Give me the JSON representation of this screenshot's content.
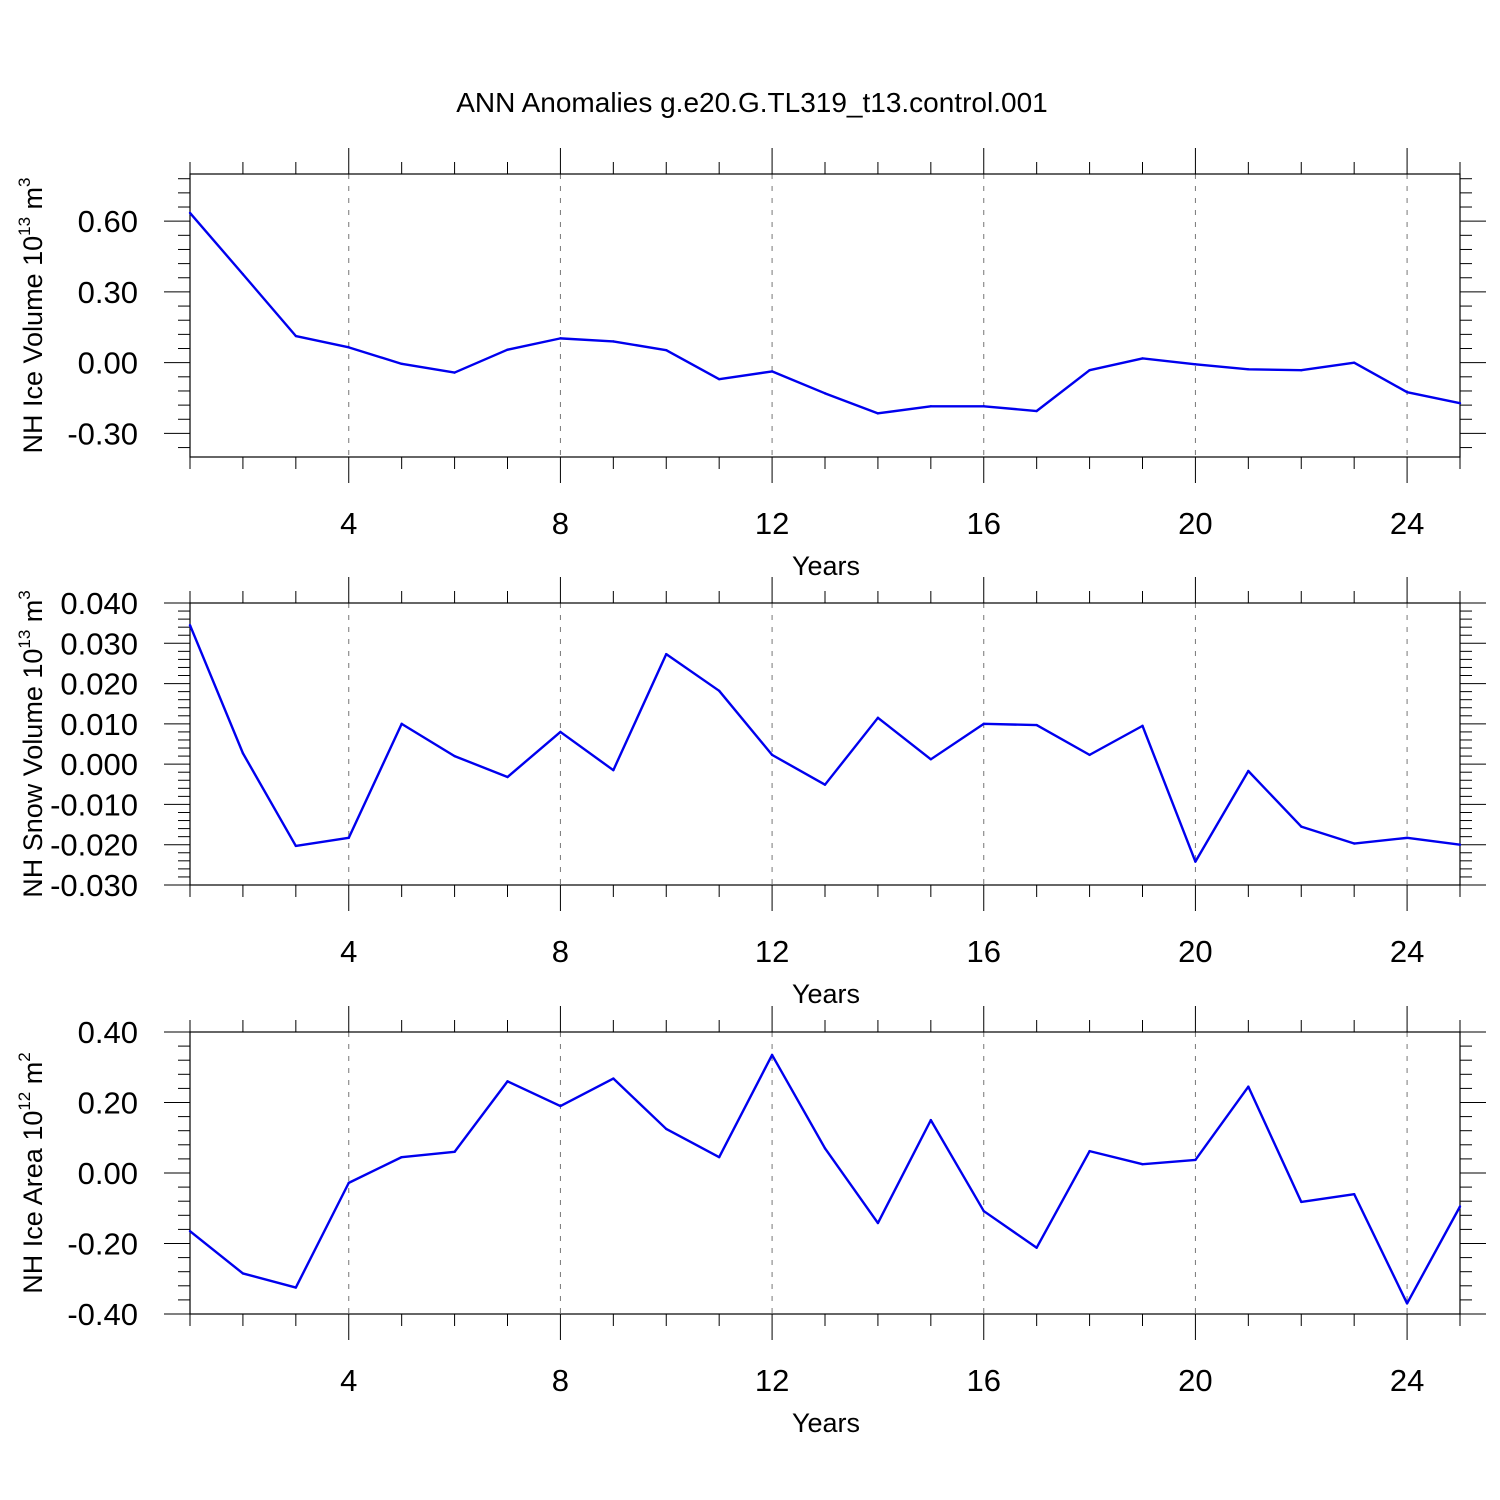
{
  "title": "ANN Anomalies g.e20.G.TL319_t13.control.001",
  "colors": {
    "series": "#0000ee",
    "axis": "#000000",
    "grid": "#777777"
  },
  "chart_data": [
    {
      "type": "line",
      "xlabel": "Years",
      "ylabel": {
        "text": "NH Ice Volume 10",
        "sup1": "13",
        "mid": " m",
        "sup2": "3"
      },
      "xlim": [
        1,
        25
      ],
      "ylim": [
        -0.4,
        0.8
      ],
      "xticks": [
        4,
        8,
        12,
        16,
        20,
        24
      ],
      "xtick_labels": [
        "4",
        "8",
        "12",
        "16",
        "20",
        "24"
      ],
      "yticks": [
        0.6,
        0.3,
        0.0,
        -0.3
      ],
      "ytick_labels": [
        "0.60",
        "0.30",
        "0.00",
        "-0.30"
      ],
      "grid": "vertical-dashed",
      "x": [
        1,
        2,
        3,
        4,
        5,
        6,
        7,
        8,
        9,
        10,
        11,
        12,
        13,
        14,
        15,
        16,
        17,
        18,
        19,
        20,
        21,
        22,
        23,
        24,
        25
      ],
      "values": [
        0.635,
        0.375,
        0.113,
        0.065,
        -0.005,
        -0.042,
        0.055,
        0.103,
        0.09,
        0.053,
        -0.07,
        -0.037,
        -0.13,
        -0.215,
        -0.185,
        -0.185,
        -0.205,
        -0.032,
        0.018,
        -0.007,
        -0.028,
        -0.032,
        0.0,
        -0.125,
        -0.172
      ]
    },
    {
      "type": "line",
      "xlabel": "Years",
      "ylabel": {
        "text": "NH Snow Volume 10",
        "sup1": "13",
        "mid": " m",
        "sup2": "3"
      },
      "xlim": [
        1,
        25
      ],
      "ylim": [
        -0.03,
        0.04
      ],
      "xticks": [
        4,
        8,
        12,
        16,
        20,
        24
      ],
      "xtick_labels": [
        "4",
        "8",
        "12",
        "16",
        "20",
        "24"
      ],
      "yticks": [
        0.04,
        0.03,
        0.02,
        0.01,
        0.0,
        -0.01,
        -0.02,
        -0.03
      ],
      "ytick_labels": [
        "0.040",
        "0.030",
        "0.020",
        "0.010",
        "0.000",
        "-0.010",
        "-0.020",
        "-0.030"
      ],
      "grid": "vertical-dashed",
      "x": [
        1,
        2,
        3,
        4,
        5,
        6,
        7,
        8,
        9,
        10,
        11,
        12,
        13,
        14,
        15,
        16,
        17,
        18,
        19,
        20,
        21,
        22,
        23,
        24,
        25
      ],
      "values": [
        0.0345,
        0.0027,
        -0.0203,
        -0.0183,
        0.01,
        0.002,
        -0.0032,
        0.008,
        -0.0015,
        0.0273,
        0.0182,
        0.0023,
        -0.0051,
        0.0115,
        0.0012,
        0.01,
        0.0097,
        0.0023,
        0.0095,
        -0.0242,
        -0.0017,
        -0.0155,
        -0.0197,
        -0.0183,
        -0.02
      ]
    },
    {
      "type": "line",
      "xlabel": "Years",
      "ylabel": {
        "text": "NH Ice Area 10",
        "sup1": "12",
        "mid": " m",
        "sup2": "2"
      },
      "xlim": [
        1,
        25
      ],
      "ylim": [
        -0.4,
        0.4
      ],
      "xticks": [
        4,
        8,
        12,
        16,
        20,
        24
      ],
      "xtick_labels": [
        "4",
        "8",
        "12",
        "16",
        "20",
        "24"
      ],
      "yticks": [
        0.4,
        0.2,
        0.0,
        -0.2,
        -0.4
      ],
      "ytick_labels": [
        "0.40",
        "0.20",
        "0.00",
        "-0.20",
        "-0.40"
      ],
      "grid": "vertical-dashed",
      "x": [
        1,
        2,
        3,
        4,
        5,
        6,
        7,
        8,
        9,
        10,
        11,
        12,
        13,
        14,
        15,
        16,
        17,
        18,
        19,
        20,
        21,
        22,
        23,
        24,
        25
      ],
      "values": [
        -0.165,
        -0.285,
        -0.325,
        -0.028,
        0.045,
        0.06,
        0.26,
        0.19,
        0.268,
        0.125,
        0.045,
        0.335,
        0.07,
        -0.142,
        0.15,
        -0.108,
        -0.212,
        0.062,
        0.025,
        0.037,
        0.245,
        -0.082,
        -0.06,
        -0.37,
        -0.095
      ]
    }
  ]
}
